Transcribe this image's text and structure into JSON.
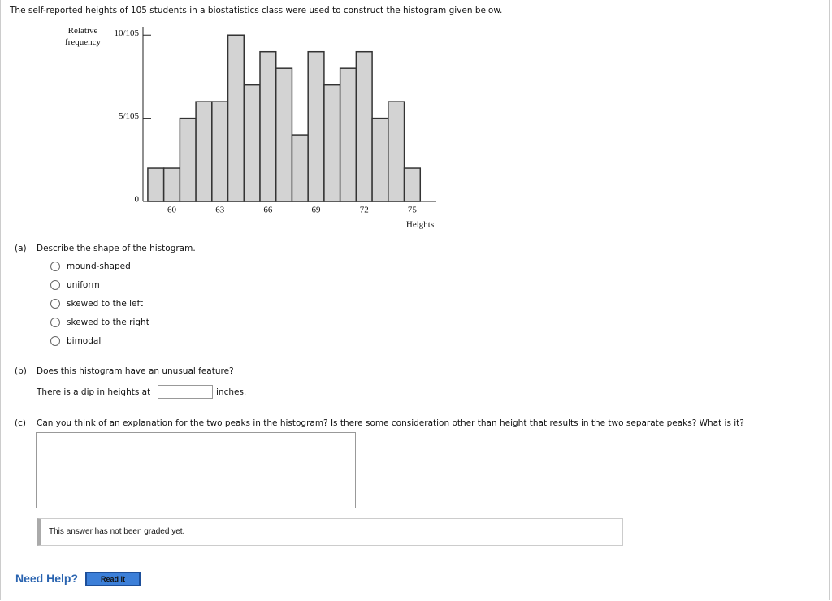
{
  "intro": "The self-reported heights of 105 students in a biostatistics class were used to construct the histogram given below.",
  "chart_data": {
    "type": "histogram",
    "x_label": "Heights",
    "y_label": "Relative frequency",
    "bins": [
      58.5,
      59.5,
      60.5,
      61.5,
      62.5,
      63.5,
      64.5,
      65.5,
      66.5,
      67.5,
      68.5,
      69.5,
      70.5,
      71.5,
      72.5,
      73.5,
      74.5,
      75.5
    ],
    "values": [
      0.019048,
      0.019048,
      0.047619,
      0.057143,
      0.057143,
      0.095238,
      0.066667,
      0.085714,
      0.07619,
      0.038095,
      0.085714,
      0.066667,
      0.07619,
      0.085714,
      0.047619,
      0.057143,
      0.019048
    ],
    "color": "#d3d3d3",
    "xlim": [
      58.2,
      76.5
    ],
    "xticks": [
      60,
      63,
      66,
      69,
      72,
      75
    ],
    "ylim": [
      0,
      0.1
    ],
    "yticks": [
      0,
      {
        "value": 0.047619,
        "label": "5/105"
      },
      {
        "value": 0.095238,
        "label": "10/105"
      }
    ]
  },
  "part_a": {
    "label": "(a)",
    "question": "Describe the shape of the histogram.",
    "options": [
      "mound-shaped",
      "uniform",
      "skewed to the left",
      "skewed to the right",
      "bimodal"
    ]
  },
  "part_b": {
    "label": "(b)",
    "question": "Does this histogram have an unusual feature?",
    "before": "There is a dip in heights at",
    "after": "inches."
  },
  "part_c": {
    "label": "(c)",
    "question": "Can you think of an explanation for the two peaks in the histogram? Is there some consideration other than height that results in the two separate peaks? What is it?"
  },
  "status": "This answer has not been graded yet.",
  "help": "Need Help?",
  "button": "Read It"
}
